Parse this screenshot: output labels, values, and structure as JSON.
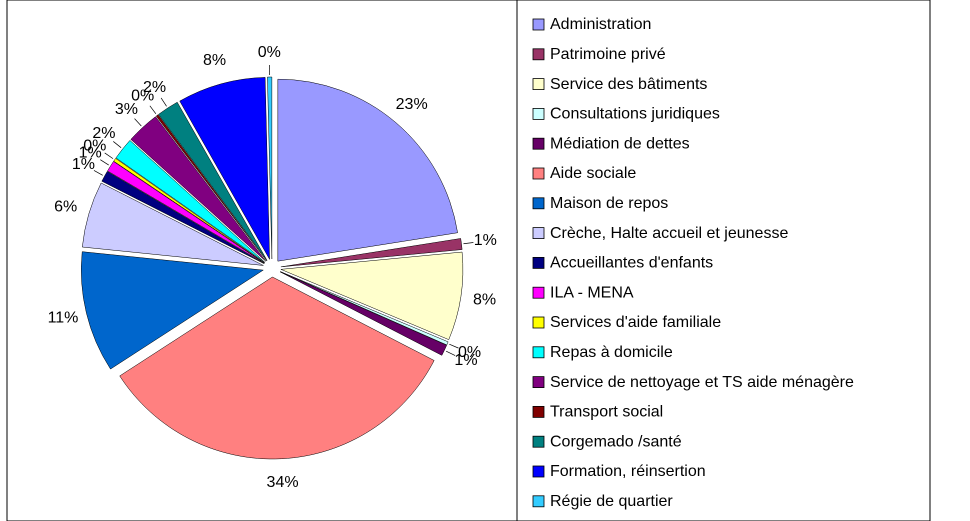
{
  "chart_data": {
    "type": "pie",
    "categories": [
      "Administration",
      "Patrimoine privé",
      "Service des bâtiments",
      "Consultations juridiques",
      "Médiation de dettes",
      "Aide sociale",
      "Maison de repos",
      "Crèche, Halte accueil et jeunesse",
      "Accueillantes d'enfants",
      "ILA - MENA",
      "Services d'aide familiale",
      "Repas à domicile",
      "Service de nettoyage et TS aide ménagère",
      "Transport social",
      "Corgemado /santé",
      "Formation, réinsertion",
      "Régie de quartier"
    ],
    "values": [
      23,
      1,
      8,
      0.3,
      1,
      34,
      11,
      6,
      1,
      1,
      0.3,
      2,
      3,
      0.2,
      2,
      8,
      0.4
    ],
    "value_labels": [
      "23%",
      "1%",
      "8%",
      "0%",
      "1%",
      "34%",
      "11%",
      "6%",
      "1%",
      "1%",
      "0%",
      "2%",
      "3%",
      "0%",
      "2%",
      "8%",
      "0%"
    ],
    "colors": [
      "#9999ff",
      "#993366",
      "#ffffcc",
      "#ccffff",
      "#660066",
      "#ff8080",
      "#0066cc",
      "#ccccff",
      "#000080",
      "#ff00ff",
      "#ffff00",
      "#00ffff",
      "#800080",
      "#800000",
      "#008080",
      "#0000ff",
      "#33ccff"
    ],
    "legend": "right"
  }
}
